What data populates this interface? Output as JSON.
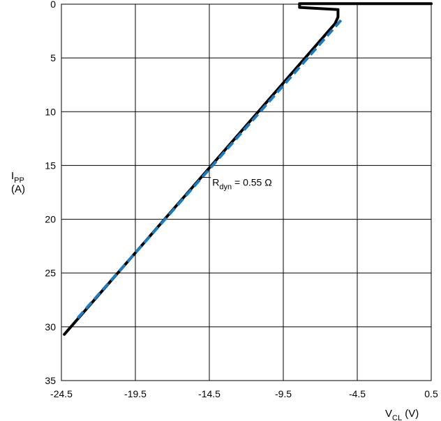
{
  "chart_data": {
    "type": "line",
    "title": "",
    "xlabel": {
      "main": "V",
      "sub": "CL",
      "unit": "(V)"
    },
    "ylabel": {
      "main": "I",
      "sub": "PP",
      "unit": "(A)"
    },
    "xlim": [
      -24.5,
      0.5
    ],
    "ylim": [
      0,
      35
    ],
    "y_inverted": true,
    "x_ticks": [
      "-24.5",
      "-19.5",
      "-14.5",
      "-9.5",
      "-4.5",
      "0.5"
    ],
    "x_tick_values": [
      -24.5,
      -19.5,
      -14.5,
      -9.5,
      -4.5,
      0.5
    ],
    "y_ticks": [
      "0",
      "5",
      "10",
      "15",
      "20",
      "25",
      "30",
      "35"
    ],
    "y_tick_values": [
      0,
      5,
      10,
      15,
      20,
      25,
      30,
      35
    ],
    "grid": true,
    "series": [
      {
        "style": "solid",
        "color": "#000000",
        "x": [
          0.5,
          -8.4,
          -8.4,
          -5.8,
          -5.8,
          -6.0,
          -24.3
        ],
        "y": [
          -0.05,
          -0.05,
          0.3,
          0.5,
          1.2,
          1.8,
          30.7
        ]
      },
      {
        "style": "dashed",
        "color": "#1f7bbf",
        "x": [
          -5.6,
          -23.6
        ],
        "y": [
          1.5,
          29.5
        ]
      }
    ],
    "annotations": [
      {
        "text_main": "R",
        "text_sub": "dyn",
        "text_rest": " = 0.55 Ω",
        "x": -14.3,
        "y": 16.9,
        "leader_to": {
          "x": -15.0,
          "y": 16.1
        }
      }
    ]
  }
}
